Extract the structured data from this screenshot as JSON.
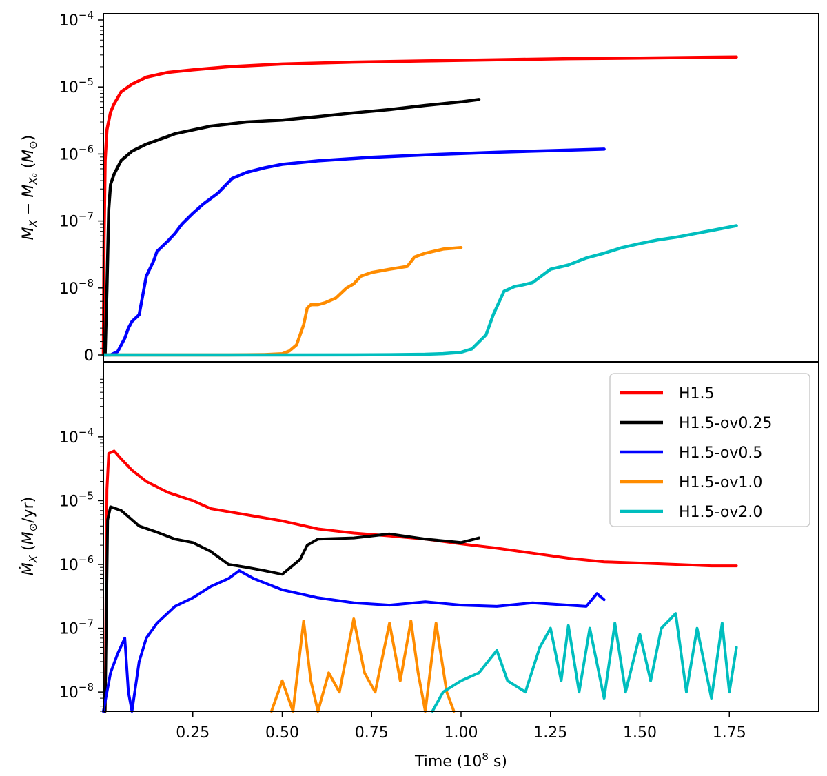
{
  "chart_data": [
    {
      "type": "line",
      "panel": "top",
      "yscale": "symlog",
      "xlim": [
        0.0,
        2.0
      ],
      "y_decades": [
        -8,
        -4
      ],
      "ylabel": "M_X − M_X0 (M_⊙)",
      "y_ticks": [
        {
          "label": "0",
          "value": 0
        },
        {
          "label": "10",
          "exp": "−8",
          "value": 1e-08
        },
        {
          "label": "10",
          "exp": "−7",
          "value": 1e-07
        },
        {
          "label": "10",
          "exp": "−6",
          "value": 1e-06
        },
        {
          "label": "10",
          "exp": "−5",
          "value": 1e-05
        },
        {
          "label": "10",
          "exp": "−4",
          "value": 0.0001
        }
      ],
      "series": [
        {
          "name": "H1.5",
          "color": "#ff0000",
          "x": [
            0.0,
            0.002,
            0.005,
            0.01,
            0.02,
            0.03,
            0.05,
            0.08,
            0.12,
            0.18,
            0.25,
            0.35,
            0.5,
            0.7,
            0.9,
            1.1,
            1.3,
            1.5,
            1.77
          ],
          "y": [
            0,
            5e-08,
            8e-07,
            2.3e-06,
            4.2e-06,
            5.6e-06,
            8.5e-06,
            1.1e-05,
            1.4e-05,
            1.65e-05,
            1.8e-05,
            2e-05,
            2.2e-05,
            2.35e-05,
            2.45e-05,
            2.55e-05,
            2.65e-05,
            2.7e-05,
            2.8e-05
          ]
        },
        {
          "name": "H1.5-ov0.25",
          "color": "#000000",
          "x": [
            0.0,
            0.005,
            0.01,
            0.015,
            0.02,
            0.03,
            0.05,
            0.08,
            0.12,
            0.2,
            0.3,
            0.4,
            0.5,
            0.55,
            0.6,
            0.7,
            0.8,
            0.9,
            1.0,
            1.05
          ],
          "y": [
            0,
            1e-10,
            1e-08,
            1.5e-07,
            3.5e-07,
            5e-07,
            8e-07,
            1.1e-06,
            1.4e-06,
            2e-06,
            2.6e-06,
            3e-06,
            3.2e-06,
            3.4e-06,
            3.6e-06,
            4.1e-06,
            4.6e-06,
            5.3e-06,
            6e-06,
            6.5e-06
          ]
        },
        {
          "name": "H1.5-ov0.5",
          "color": "#0000ff",
          "x": [
            0.0,
            0.02,
            0.04,
            0.06,
            0.07,
            0.08,
            0.1,
            0.12,
            0.14,
            0.15,
            0.18,
            0.2,
            0.22,
            0.25,
            0.28,
            0.32,
            0.36,
            0.4,
            0.45,
            0.5,
            0.6,
            0.75,
            0.9,
            1.1,
            1.25,
            1.4
          ],
          "y": [
            0,
            0,
            5e-10,
            2.5e-09,
            4e-09,
            5e-09,
            6e-09,
            1.5e-08,
            2.5e-08,
            3.5e-08,
            5e-08,
            6.5e-08,
            9e-08,
            1.3e-07,
            1.8e-07,
            2.6e-07,
            4.3e-07,
            5.3e-07,
            6.2e-07,
            7e-07,
            7.9e-07,
            8.9e-07,
            9.7e-07,
            1.06e-06,
            1.12e-06,
            1.18e-06
          ]
        },
        {
          "name": "H1.5-ov1.0",
          "color": "#ff8c00",
          "x": [
            0.0,
            0.2,
            0.35,
            0.45,
            0.5,
            0.52,
            0.54,
            0.56,
            0.57,
            0.58,
            0.6,
            0.62,
            0.65,
            0.68,
            0.7,
            0.72,
            0.75,
            0.8,
            0.85,
            0.87,
            0.9,
            0.95,
            1.0
          ],
          "y": [
            0,
            0,
            0,
            5e-11,
            1.8e-10,
            6e-10,
            1.5e-09,
            4.5e-09,
            7e-09,
            7.5e-09,
            7.5e-09,
            7.8e-09,
            8.5e-09,
            1e-08,
            1.15e-08,
            1.5e-08,
            1.7e-08,
            1.9e-08,
            2.1e-08,
            2.9e-08,
            3.3e-08,
            3.8e-08,
            4e-08
          ]
        },
        {
          "name": "H1.5-ov2.0",
          "color": "#00bebe",
          "x": [
            0.0,
            0.5,
            0.7,
            0.8,
            0.9,
            0.95,
            1.0,
            1.03,
            1.07,
            1.09,
            1.12,
            1.15,
            1.17,
            1.2,
            1.25,
            1.3,
            1.35,
            1.4,
            1.45,
            1.5,
            1.55,
            1.6,
            1.7,
            1.77
          ],
          "y": [
            0,
            0,
            1e-11,
            4e-11,
            1e-10,
            2e-10,
            4e-10,
            9e-10,
            3e-09,
            6e-09,
            9.5e-09,
            1.05e-08,
            1.1e-08,
            1.2e-08,
            1.9e-08,
            2.2e-08,
            2.8e-08,
            3.3e-08,
            4e-08,
            4.6e-08,
            5.2e-08,
            5.7e-08,
            7.2e-08,
            8.5e-08
          ]
        }
      ]
    },
    {
      "type": "line",
      "panel": "bottom",
      "yscale": "log",
      "xlim": [
        0.0,
        2.0
      ],
      "ylim": [
        5e-09,
        0.0015
      ],
      "xlabel": "Time (10",
      "xlabel_exp": "8",
      "xlabel_end": " s)",
      "ylabel": "Ṁ_X (M_⊙/yr)",
      "x_ticks": [
        "0.25",
        "0.50",
        "0.75",
        "1.00",
        "1.25",
        "1.50",
        "1.75"
      ],
      "x_tick_values": [
        0.25,
        0.5,
        0.75,
        1.0,
        1.25,
        1.5,
        1.75
      ],
      "y_ticks": [
        {
          "label": "10",
          "exp": "−8",
          "value": 1e-08
        },
        {
          "label": "10",
          "exp": "−7",
          "value": 1e-07
        },
        {
          "label": "10",
          "exp": "−6",
          "value": 1e-06
        },
        {
          "label": "10",
          "exp": "−5",
          "value": 1e-05
        },
        {
          "label": "10",
          "exp": "−4",
          "value": 0.0001
        }
      ],
      "legend_position": "upper-right",
      "series": [
        {
          "name": "H1.5",
          "color": "#ff0000",
          "x": [
            0.0,
            0.005,
            0.01,
            0.015,
            0.03,
            0.05,
            0.08,
            0.12,
            0.18,
            0.25,
            0.3,
            0.4,
            0.5,
            0.6,
            0.7,
            0.8,
            0.9,
            1.0,
            1.1,
            1.2,
            1.3,
            1.4,
            1.5,
            1.6,
            1.7,
            1.77
          ],
          "y": [
            5e-09,
            5e-09,
            1.5e-05,
            5.5e-05,
            6e-05,
            4.5e-05,
            3e-05,
            2e-05,
            1.35e-05,
            1e-05,
            7.5e-06,
            6e-06,
            4.8e-06,
            3.6e-06,
            3.1e-06,
            2.8e-06,
            2.5e-06,
            2.1e-06,
            1.8e-06,
            1.5e-06,
            1.25e-06,
            1.1e-06,
            1.05e-06,
            1e-06,
            9.5e-07,
            9.5e-07
          ]
        },
        {
          "name": "H1.5-ov0.25",
          "color": "#000000",
          "x": [
            0.0,
            0.005,
            0.008,
            0.012,
            0.02,
            0.05,
            0.1,
            0.15,
            0.2,
            0.25,
            0.3,
            0.35,
            0.4,
            0.45,
            0.5,
            0.55,
            0.57,
            0.6,
            0.7,
            0.8,
            0.9,
            1.0,
            1.05
          ],
          "y": [
            5e-09,
            5e-09,
            1e-07,
            5e-06,
            8e-06,
            7e-06,
            4e-06,
            3.2e-06,
            2.5e-06,
            2.2e-06,
            1.6e-06,
            1e-06,
            9e-07,
            8e-07,
            7e-07,
            1.2e-06,
            2e-06,
            2.5e-06,
            2.6e-06,
            3e-06,
            2.5e-06,
            2.2e-06,
            2.6e-06
          ]
        },
        {
          "name": "H1.5-ov0.5",
          "color": "#0000ff",
          "x": [
            0.0,
            0.02,
            0.04,
            0.06,
            0.07,
            0.08,
            0.1,
            0.12,
            0.15,
            0.2,
            0.25,
            0.3,
            0.35,
            0.38,
            0.42,
            0.5,
            0.6,
            0.7,
            0.8,
            0.9,
            1.0,
            1.1,
            1.2,
            1.3,
            1.35,
            1.38,
            1.4
          ],
          "y": [
            5e-09,
            2e-08,
            4e-08,
            7e-08,
            1e-08,
            5e-09,
            3e-08,
            7e-08,
            1.2e-07,
            2.2e-07,
            3e-07,
            4.5e-07,
            6e-07,
            8e-07,
            6e-07,
            4e-07,
            3e-07,
            2.5e-07,
            2.3e-07,
            2.6e-07,
            2.3e-07,
            2.2e-07,
            2.5e-07,
            2.3e-07,
            2.2e-07,
            3.5e-07,
            2.8e-07
          ]
        },
        {
          "name": "H1.5-ov1.0",
          "color": "#ff8c00",
          "x": [
            0.47,
            0.5,
            0.53,
            0.56,
            0.58,
            0.6,
            0.63,
            0.66,
            0.7,
            0.73,
            0.76,
            0.8,
            0.83,
            0.86,
            0.88,
            0.9,
            0.93,
            0.96,
            0.98
          ],
          "y": [
            5e-09,
            1.5e-08,
            5e-09,
            1.3e-07,
            1.5e-08,
            5e-09,
            2e-08,
            1e-08,
            1.4e-07,
            2e-08,
            1e-08,
            1.2e-07,
            1.5e-08,
            1.3e-07,
            2e-08,
            5e-09,
            1.2e-07,
            1e-08,
            5e-09
          ]
        },
        {
          "name": "H1.5-ov2.0",
          "color": "#00bebe",
          "x": [
            0.92,
            0.95,
            1.0,
            1.05,
            1.1,
            1.13,
            1.18,
            1.22,
            1.25,
            1.28,
            1.3,
            1.33,
            1.36,
            1.4,
            1.43,
            1.46,
            1.5,
            1.53,
            1.56,
            1.6,
            1.63,
            1.66,
            1.7,
            1.73,
            1.75,
            1.77
          ],
          "y": [
            5e-09,
            1e-08,
            1.5e-08,
            2e-08,
            4.5e-08,
            1.5e-08,
            1e-08,
            5e-08,
            1e-07,
            1.5e-08,
            1.1e-07,
            1e-08,
            1e-07,
            8e-09,
            1.2e-07,
            1e-08,
            8e-08,
            1.5e-08,
            1e-07,
            1.7e-07,
            1e-08,
            1e-07,
            8e-09,
            1.2e-07,
            1e-08,
            5e-08
          ]
        }
      ]
    }
  ]
}
